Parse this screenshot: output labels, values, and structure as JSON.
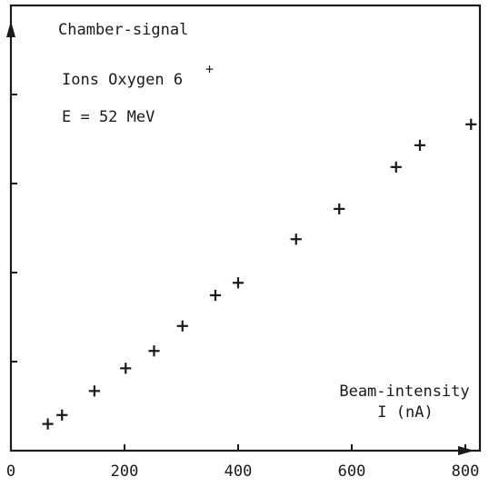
{
  "chart_data": {
    "type": "scatter",
    "title": "Chamber-signal",
    "annotations": [
      "Ions Oxygen 6",
      "+",
      "E = 52 MeV"
    ],
    "xlabel": [
      "Beam-intensity",
      "I (nA)"
    ],
    "ylabel": "Chamber-signal",
    "xlim": [
      0,
      820
    ],
    "ylim": [
      0,
      1
    ],
    "x_ticks": [
      0,
      200,
      400,
      600,
      800
    ],
    "y_ticks_unlabeled": [
      0.2,
      0.4,
      0.6,
      0.8
    ],
    "grid": false,
    "points": [
      {
        "x": 65,
        "y": 0.06
      },
      {
        "x": 90,
        "y": 0.08
      },
      {
        "x": 147,
        "y": 0.134
      },
      {
        "x": 202,
        "y": 0.185
      },
      {
        "x": 252,
        "y": 0.224
      },
      {
        "x": 302,
        "y": 0.28
      },
      {
        "x": 360,
        "y": 0.349
      },
      {
        "x": 400,
        "y": 0.377
      },
      {
        "x": 502,
        "y": 0.475
      },
      {
        "x": 578,
        "y": 0.543
      },
      {
        "x": 678,
        "y": 0.637
      },
      {
        "x": 720,
        "y": 0.686
      },
      {
        "x": 810,
        "y": 0.733
      }
    ]
  }
}
